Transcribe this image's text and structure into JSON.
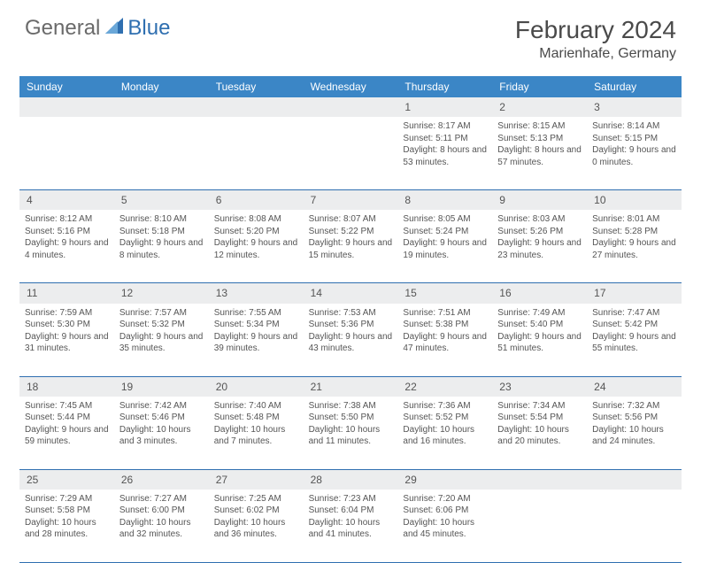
{
  "brand": {
    "general": "General",
    "blue": "Blue"
  },
  "header": {
    "month": "February 2024",
    "location": "Marienhafe, Germany"
  },
  "colors": {
    "header_bar": "#3b86c6",
    "rule": "#2f6fb0",
    "shade": "#ecedee",
    "text": "#4a4a4a",
    "logo_blue": "#2f6fb0"
  },
  "day_names": [
    "Sunday",
    "Monday",
    "Tuesday",
    "Wednesday",
    "Thursday",
    "Friday",
    "Saturday"
  ],
  "weeks": [
    [
      null,
      null,
      null,
      null,
      {
        "n": "1",
        "sr": "Sunrise: 8:17 AM",
        "ss": "Sunset: 5:11 PM",
        "dl": "Daylight: 8 hours and 53 minutes."
      },
      {
        "n": "2",
        "sr": "Sunrise: 8:15 AM",
        "ss": "Sunset: 5:13 PM",
        "dl": "Daylight: 8 hours and 57 minutes."
      },
      {
        "n": "3",
        "sr": "Sunrise: 8:14 AM",
        "ss": "Sunset: 5:15 PM",
        "dl": "Daylight: 9 hours and 0 minutes."
      }
    ],
    [
      {
        "n": "4",
        "sr": "Sunrise: 8:12 AM",
        "ss": "Sunset: 5:16 PM",
        "dl": "Daylight: 9 hours and 4 minutes."
      },
      {
        "n": "5",
        "sr": "Sunrise: 8:10 AM",
        "ss": "Sunset: 5:18 PM",
        "dl": "Daylight: 9 hours and 8 minutes."
      },
      {
        "n": "6",
        "sr": "Sunrise: 8:08 AM",
        "ss": "Sunset: 5:20 PM",
        "dl": "Daylight: 9 hours and 12 minutes."
      },
      {
        "n": "7",
        "sr": "Sunrise: 8:07 AM",
        "ss": "Sunset: 5:22 PM",
        "dl": "Daylight: 9 hours and 15 minutes."
      },
      {
        "n": "8",
        "sr": "Sunrise: 8:05 AM",
        "ss": "Sunset: 5:24 PM",
        "dl": "Daylight: 9 hours and 19 minutes."
      },
      {
        "n": "9",
        "sr": "Sunrise: 8:03 AM",
        "ss": "Sunset: 5:26 PM",
        "dl": "Daylight: 9 hours and 23 minutes."
      },
      {
        "n": "10",
        "sr": "Sunrise: 8:01 AM",
        "ss": "Sunset: 5:28 PM",
        "dl": "Daylight: 9 hours and 27 minutes."
      }
    ],
    [
      {
        "n": "11",
        "sr": "Sunrise: 7:59 AM",
        "ss": "Sunset: 5:30 PM",
        "dl": "Daylight: 9 hours and 31 minutes."
      },
      {
        "n": "12",
        "sr": "Sunrise: 7:57 AM",
        "ss": "Sunset: 5:32 PM",
        "dl": "Daylight: 9 hours and 35 minutes."
      },
      {
        "n": "13",
        "sr": "Sunrise: 7:55 AM",
        "ss": "Sunset: 5:34 PM",
        "dl": "Daylight: 9 hours and 39 minutes."
      },
      {
        "n": "14",
        "sr": "Sunrise: 7:53 AM",
        "ss": "Sunset: 5:36 PM",
        "dl": "Daylight: 9 hours and 43 minutes."
      },
      {
        "n": "15",
        "sr": "Sunrise: 7:51 AM",
        "ss": "Sunset: 5:38 PM",
        "dl": "Daylight: 9 hours and 47 minutes."
      },
      {
        "n": "16",
        "sr": "Sunrise: 7:49 AM",
        "ss": "Sunset: 5:40 PM",
        "dl": "Daylight: 9 hours and 51 minutes."
      },
      {
        "n": "17",
        "sr": "Sunrise: 7:47 AM",
        "ss": "Sunset: 5:42 PM",
        "dl": "Daylight: 9 hours and 55 minutes."
      }
    ],
    [
      {
        "n": "18",
        "sr": "Sunrise: 7:45 AM",
        "ss": "Sunset: 5:44 PM",
        "dl": "Daylight: 9 hours and 59 minutes."
      },
      {
        "n": "19",
        "sr": "Sunrise: 7:42 AM",
        "ss": "Sunset: 5:46 PM",
        "dl": "Daylight: 10 hours and 3 minutes."
      },
      {
        "n": "20",
        "sr": "Sunrise: 7:40 AM",
        "ss": "Sunset: 5:48 PM",
        "dl": "Daylight: 10 hours and 7 minutes."
      },
      {
        "n": "21",
        "sr": "Sunrise: 7:38 AM",
        "ss": "Sunset: 5:50 PM",
        "dl": "Daylight: 10 hours and 11 minutes."
      },
      {
        "n": "22",
        "sr": "Sunrise: 7:36 AM",
        "ss": "Sunset: 5:52 PM",
        "dl": "Daylight: 10 hours and 16 minutes."
      },
      {
        "n": "23",
        "sr": "Sunrise: 7:34 AM",
        "ss": "Sunset: 5:54 PM",
        "dl": "Daylight: 10 hours and 20 minutes."
      },
      {
        "n": "24",
        "sr": "Sunrise: 7:32 AM",
        "ss": "Sunset: 5:56 PM",
        "dl": "Daylight: 10 hours and 24 minutes."
      }
    ],
    [
      {
        "n": "25",
        "sr": "Sunrise: 7:29 AM",
        "ss": "Sunset: 5:58 PM",
        "dl": "Daylight: 10 hours and 28 minutes."
      },
      {
        "n": "26",
        "sr": "Sunrise: 7:27 AM",
        "ss": "Sunset: 6:00 PM",
        "dl": "Daylight: 10 hours and 32 minutes."
      },
      {
        "n": "27",
        "sr": "Sunrise: 7:25 AM",
        "ss": "Sunset: 6:02 PM",
        "dl": "Daylight: 10 hours and 36 minutes."
      },
      {
        "n": "28",
        "sr": "Sunrise: 7:23 AM",
        "ss": "Sunset: 6:04 PM",
        "dl": "Daylight: 10 hours and 41 minutes."
      },
      {
        "n": "29",
        "sr": "Sunrise: 7:20 AM",
        "ss": "Sunset: 6:06 PM",
        "dl": "Daylight: 10 hours and 45 minutes."
      },
      null,
      null
    ]
  ]
}
